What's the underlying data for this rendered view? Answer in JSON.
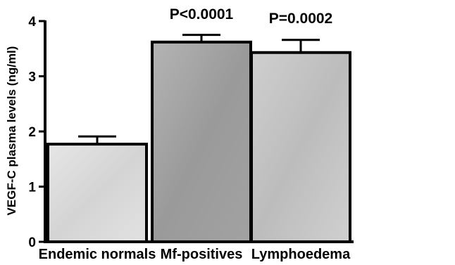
{
  "chart_data": {
    "type": "bar",
    "title": "",
    "xlabel": "",
    "ylabel": "VEGF-C plasma levels (ng/ml)",
    "ylim": [
      0,
      4
    ],
    "yticks": [
      0,
      1,
      2,
      3,
      4
    ],
    "categories": [
      "Endemic normals",
      "Mf-positives",
      "Lymphoedema"
    ],
    "values": [
      1.77,
      3.62,
      3.43
    ],
    "error_upper": [
      1.91,
      3.75,
      3.66
    ],
    "annotations": [
      "",
      "P<0.0001",
      "P=0.0002"
    ],
    "bar_fills": [
      "#dcdcdc",
      "#a8a8a8",
      "#c8c8c8"
    ],
    "grid": false,
    "legend": "none"
  }
}
